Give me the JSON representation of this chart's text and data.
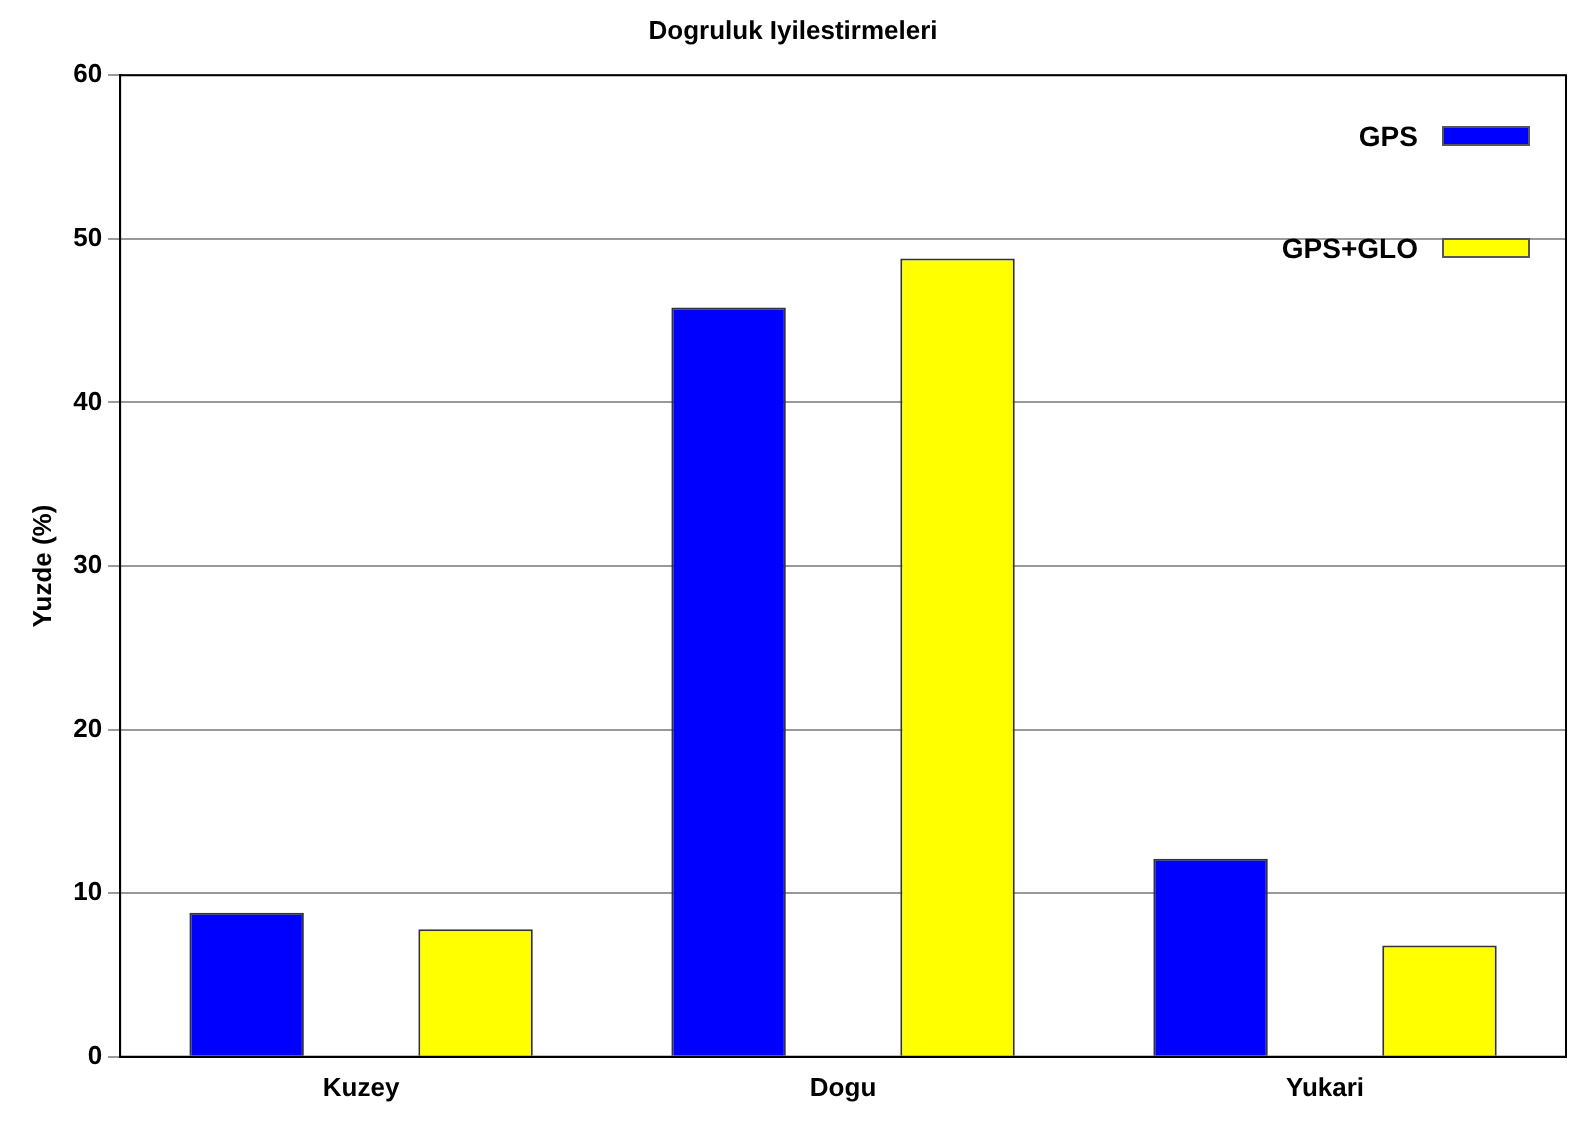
{
  "chart_data": {
    "type": "bar",
    "title": "Dogruluk Iyilestirmeleri",
    "ylabel": "Yuzde (%)",
    "categories": [
      "Kuzey",
      "Dogu",
      "Yukari"
    ],
    "series": [
      {
        "name": "GPS",
        "color": "#0000ff",
        "values": [
          8.8,
          45.8,
          12.1
        ]
      },
      {
        "name": "GPS+GLO",
        "color": "#ffff00",
        "values": [
          7.8,
          48.8,
          6.8
        ]
      }
    ],
    "ylim": [
      0,
      60
    ],
    "yticks": [
      0,
      10,
      20,
      30,
      40,
      50,
      60
    ],
    "grid": "y",
    "legend": "top right"
  }
}
